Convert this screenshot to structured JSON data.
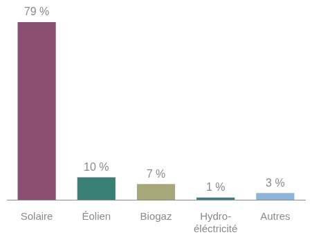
{
  "chart_data": {
    "type": "bar",
    "categories": [
      "Solaire",
      "Éolien",
      "Biogaz",
      "Hydro-éléctricité",
      "Autres"
    ],
    "values": [
      79,
      10,
      7,
      1,
      3
    ],
    "value_labels": [
      "79 %",
      "10 %",
      "7 %",
      "1 %",
      "3 %"
    ],
    "colors": [
      "#8b4f72",
      "#3a7f73",
      "#a8a77c",
      "#3f7d8a",
      "#8db4da"
    ],
    "ylim": [
      0,
      79
    ],
    "grid": false,
    "data_labels": true,
    "tick_labels": "x"
  }
}
